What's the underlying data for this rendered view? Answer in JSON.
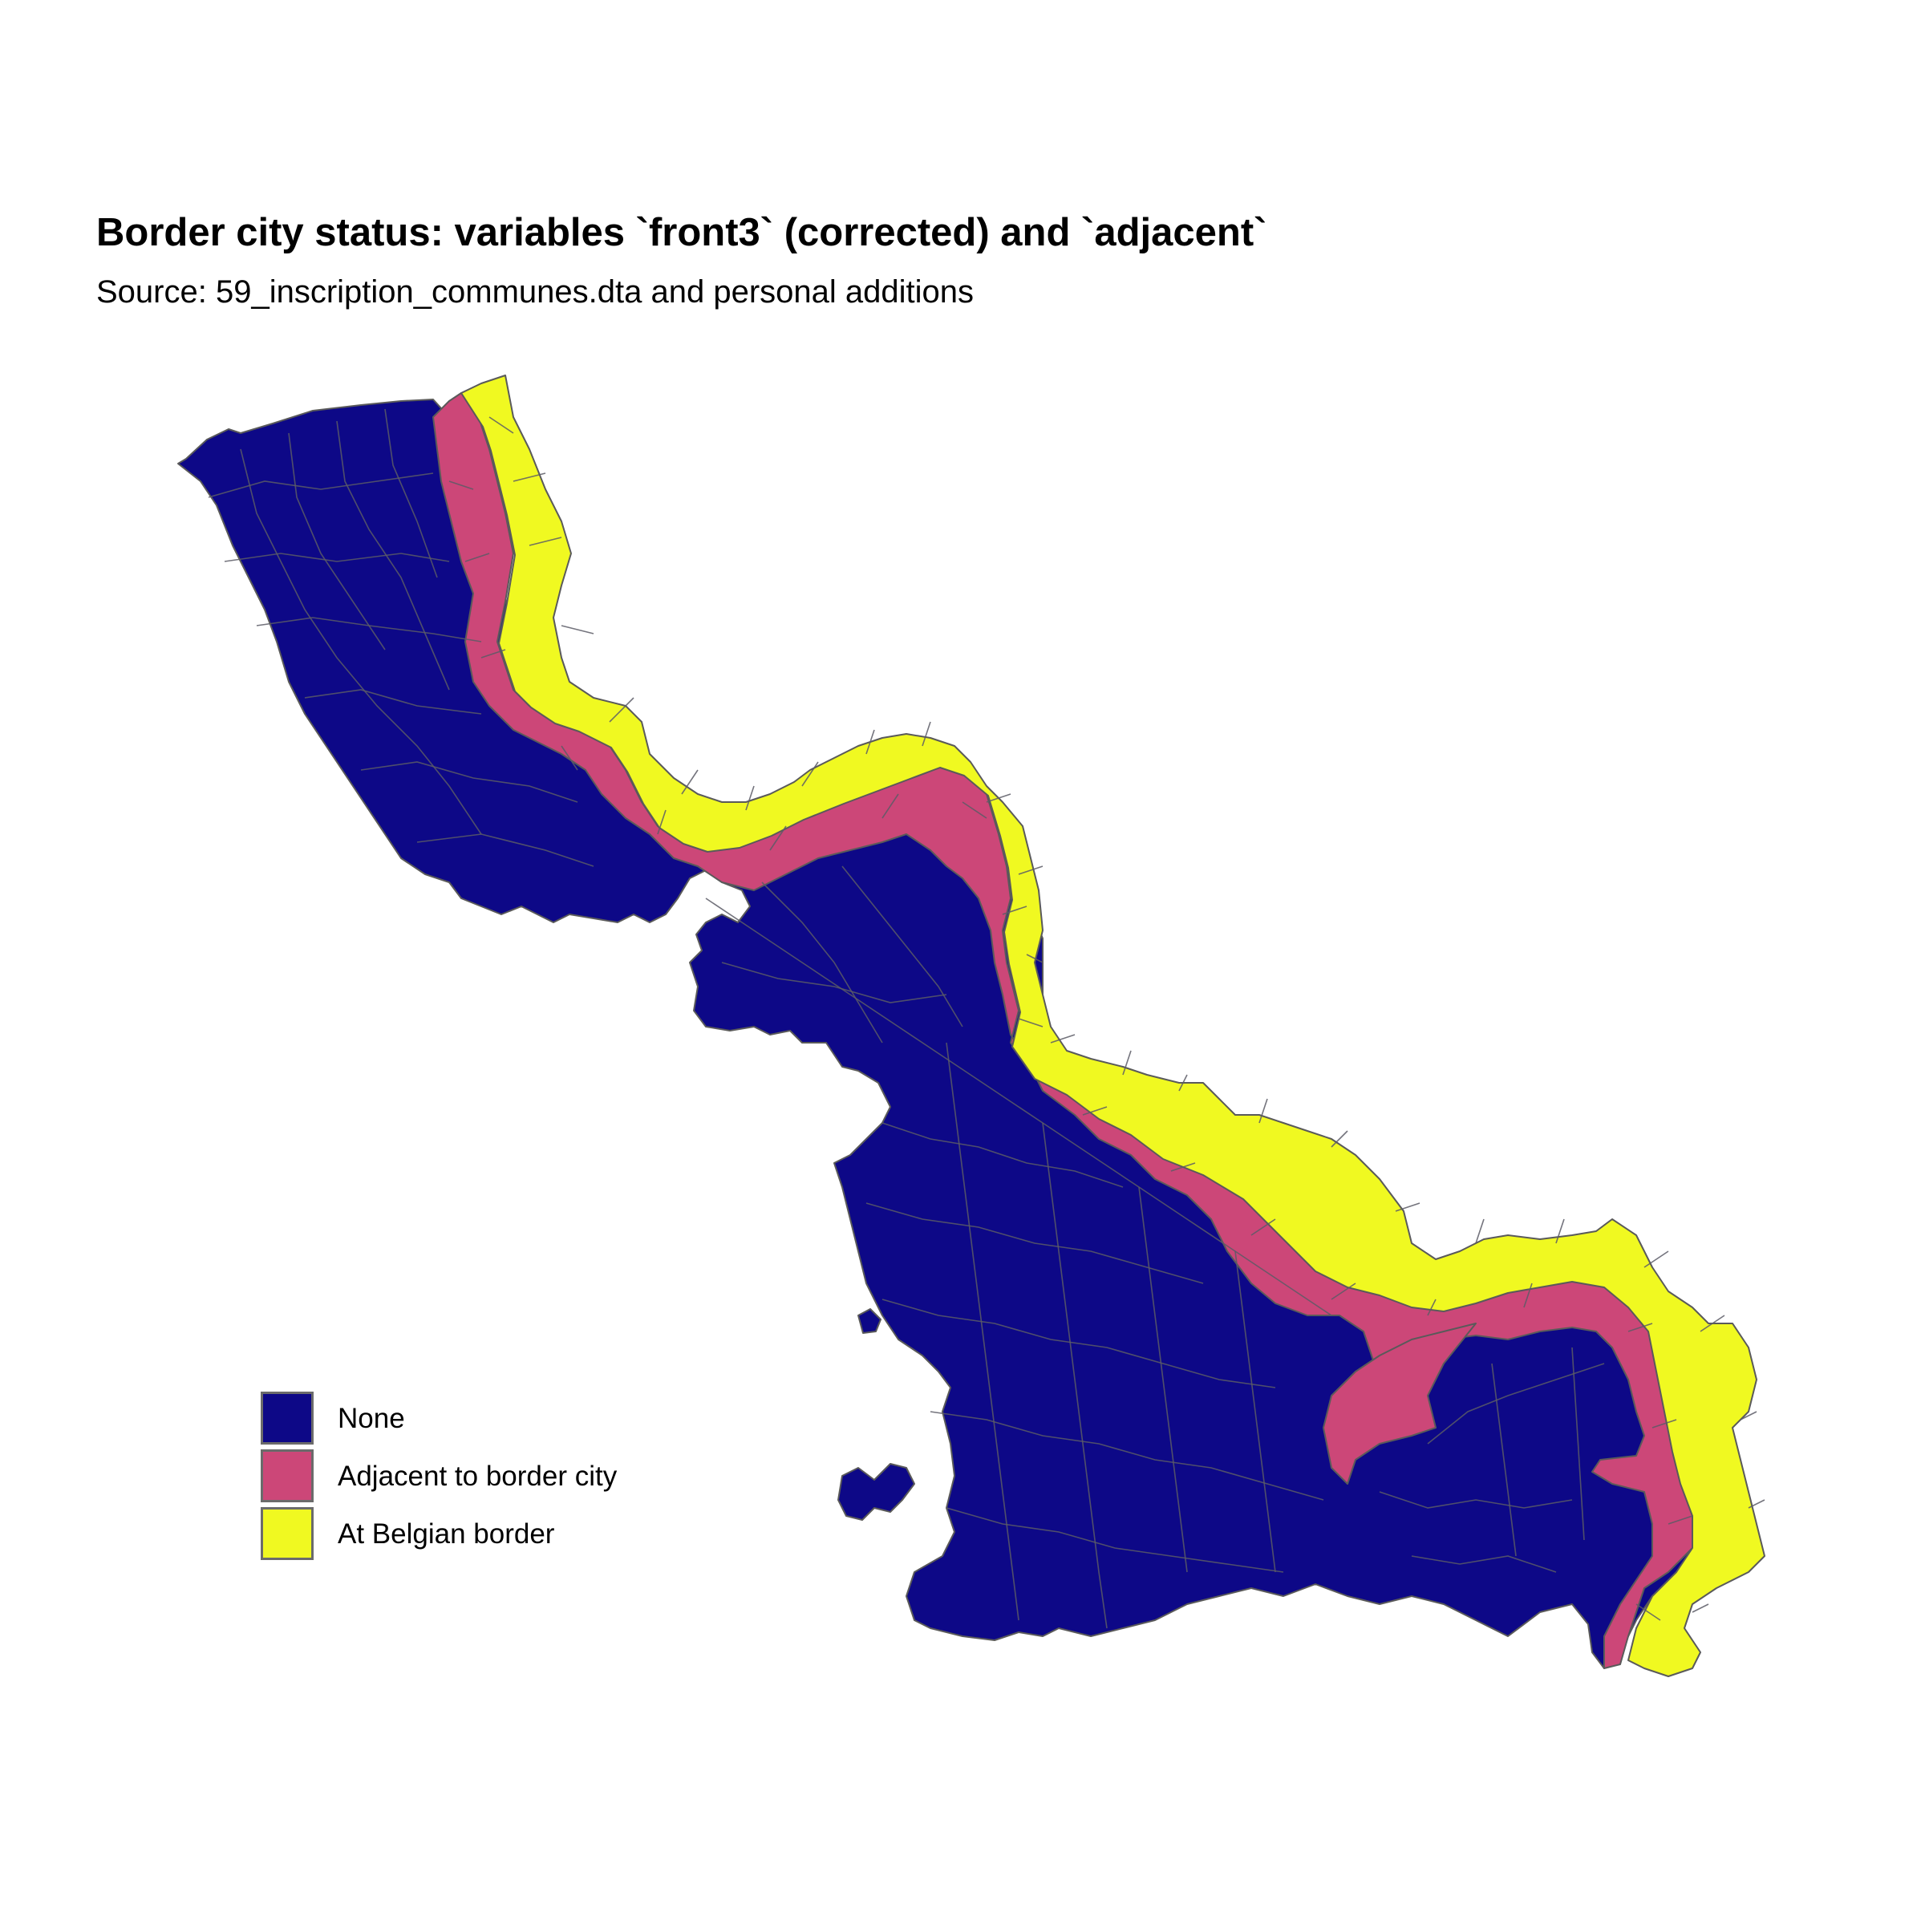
{
  "title": "Border city status: variables `front3` (corrected) and `adjacent`",
  "subtitle": "Source: 59_inscription_communes.dta and personal additions",
  "colors": {
    "none": "#0d0887",
    "adjacent": "#cc4778",
    "border": "#f0f921",
    "boundary": "#5a5a5a"
  },
  "legend": {
    "items": [
      {
        "label": "None",
        "color": "#0d0887"
      },
      {
        "label": "Adjacent to border city",
        "color": "#cc4778"
      },
      {
        "label": "At Belgian border",
        "color": "#f0f921"
      }
    ]
  }
}
